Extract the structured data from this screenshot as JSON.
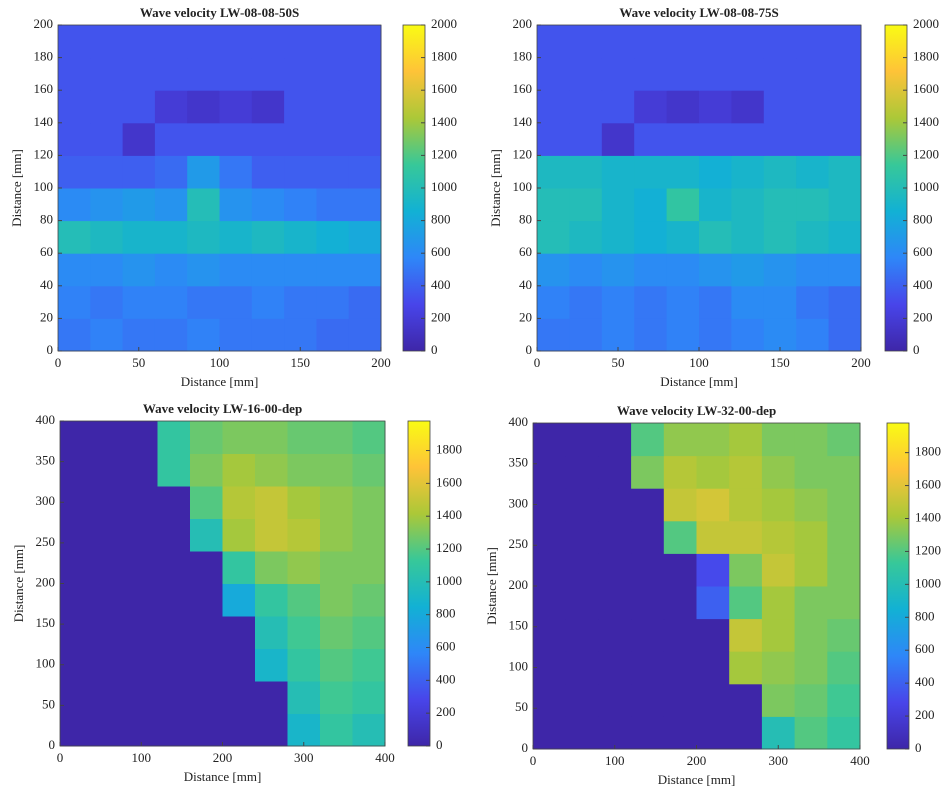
{
  "chart_data": [
    {
      "type": "heatmap",
      "title": "Wave velocity LW-08-08-50S",
      "x_label": "Distance [mm]",
      "y_label": "Distance [mm]",
      "x": [
        10,
        30,
        50,
        70,
        90,
        110,
        130,
        150,
        170,
        190
      ],
      "y": [
        10,
        30,
        50,
        70,
        90,
        110,
        130,
        150,
        170,
        190
      ],
      "xlim": [
        0,
        200
      ],
      "ylim": [
        0,
        200
      ],
      "xticks": [
        0,
        50,
        100,
        150,
        200
      ],
      "yticks": [
        0,
        20,
        40,
        60,
        80,
        100,
        120,
        140,
        160,
        180,
        200
      ],
      "clim": [
        0,
        2000
      ],
      "cticks": [
        0,
        200,
        400,
        600,
        800,
        1000,
        1200,
        1400,
        1600,
        1800,
        2000
      ],
      "colorscale": [
        "#3e26a8",
        "#4845ea",
        "#2e87f8",
        "#12b1d4",
        "#37c899",
        "#abc838",
        "#fec338",
        "#f9fb14"
      ],
      "z": [
        [
          500,
          550,
          500,
          500,
          550,
          500,
          500,
          500,
          450,
          450
        ],
        [
          550,
          500,
          550,
          550,
          500,
          500,
          550,
          500,
          500,
          450
        ],
        [
          600,
          600,
          650,
          600,
          650,
          600,
          600,
          600,
          600,
          600
        ],
        [
          1000,
          950,
          900,
          900,
          950,
          900,
          950,
          900,
          850,
          800
        ],
        [
          600,
          650,
          700,
          650,
          1000,
          650,
          600,
          550,
          500,
          500
        ],
        [
          400,
          400,
          400,
          450,
          700,
          500,
          400,
          400,
          400,
          400
        ],
        [
          350,
          350,
          150,
          350,
          350,
          350,
          350,
          350,
          350,
          350
        ],
        [
          350,
          350,
          350,
          200,
          150,
          200,
          150,
          350,
          350,
          350
        ],
        [
          350,
          350,
          350,
          350,
          350,
          350,
          350,
          350,
          350,
          350
        ],
        [
          350,
          350,
          350,
          350,
          350,
          350,
          350,
          350,
          350,
          350
        ]
      ]
    },
    {
      "type": "heatmap",
      "title": "Wave velocity LW-08-08-75S",
      "x_label": "Distance [mm]",
      "y_label": "Distance [mm]",
      "x": [
        10,
        30,
        50,
        70,
        90,
        110,
        130,
        150,
        170,
        190
      ],
      "y": [
        10,
        30,
        50,
        70,
        90,
        110,
        130,
        150,
        170,
        190
      ],
      "xlim": [
        0,
        200
      ],
      "ylim": [
        0,
        200
      ],
      "xticks": [
        0,
        50,
        100,
        150,
        200
      ],
      "yticks": [
        0,
        20,
        40,
        60,
        80,
        100,
        120,
        140,
        160,
        180,
        200
      ],
      "clim": [
        0,
        2000
      ],
      "cticks": [
        0,
        200,
        400,
        600,
        800,
        1000,
        1200,
        1400,
        1600,
        1800,
        2000
      ],
      "colorscale": [
        "#3e26a8",
        "#4845ea",
        "#2e87f8",
        "#12b1d4",
        "#37c899",
        "#abc838",
        "#fec338",
        "#f9fb14"
      ],
      "z": [
        [
          500,
          500,
          550,
          500,
          550,
          500,
          550,
          600,
          550,
          450
        ],
        [
          550,
          500,
          550,
          500,
          550,
          500,
          600,
          600,
          500,
          450
        ],
        [
          650,
          600,
          650,
          600,
          600,
          650,
          700,
          650,
          600,
          600
        ],
        [
          1000,
          950,
          900,
          850,
          900,
          1000,
          950,
          1000,
          950,
          900
        ],
        [
          1000,
          1000,
          900,
          850,
          1100,
          900,
          950,
          1000,
          1000,
          950
        ],
        [
          950,
          950,
          900,
          900,
          900,
          850,
          900,
          950,
          900,
          950
        ],
        [
          350,
          350,
          150,
          350,
          350,
          350,
          350,
          350,
          350,
          350
        ],
        [
          350,
          350,
          350,
          200,
          150,
          200,
          150,
          350,
          350,
          350
        ],
        [
          350,
          350,
          350,
          350,
          350,
          350,
          350,
          350,
          350,
          350
        ],
        [
          350,
          350,
          350,
          350,
          350,
          350,
          350,
          350,
          350,
          350
        ]
      ]
    },
    {
      "type": "heatmap",
      "title": "Wave velocity LW-16-00-dep",
      "x_label": "Distance [mm]",
      "y_label": "Distance [mm]",
      "x": [
        20,
        60,
        100,
        140,
        180,
        220,
        260,
        300,
        340,
        380
      ],
      "y": [
        20,
        60,
        100,
        140,
        180,
        220,
        260,
        300,
        340,
        380
      ],
      "xlim": [
        0,
        400
      ],
      "ylim": [
        0,
        400
      ],
      "xticks": [
        0,
        100,
        200,
        300,
        400
      ],
      "yticks": [
        0,
        50,
        100,
        150,
        200,
        250,
        300,
        350,
        400
      ],
      "clim": [
        0,
        1980
      ],
      "cticks": [
        0,
        200,
        400,
        600,
        800,
        1000,
        1200,
        1400,
        1600,
        1800
      ],
      "colorscale": [
        "#3e26a8",
        "#4845ea",
        "#2e87f8",
        "#12b1d4",
        "#37c899",
        "#abc838",
        "#fec338",
        "#f9fb14"
      ],
      "z": [
        [
          0,
          0,
          0,
          0,
          0,
          0,
          0,
          900,
          1100,
          1000
        ],
        [
          0,
          0,
          0,
          0,
          0,
          0,
          0,
          1000,
          1150,
          1100
        ],
        [
          0,
          0,
          0,
          0,
          0,
          0,
          900,
          1100,
          1200,
          1150
        ],
        [
          0,
          0,
          0,
          0,
          0,
          0,
          1000,
          1150,
          1250,
          1200
        ],
        [
          0,
          0,
          0,
          0,
          0,
          800,
          1100,
          1200,
          1300,
          1250
        ],
        [
          0,
          0,
          0,
          0,
          0,
          1100,
          1300,
          1350,
          1300,
          1300
        ],
        [
          0,
          0,
          0,
          0,
          1000,
          1400,
          1500,
          1450,
          1350,
          1300
        ],
        [
          0,
          0,
          0,
          0,
          1200,
          1450,
          1500,
          1400,
          1350,
          1300
        ],
        [
          0,
          0,
          0,
          1100,
          1300,
          1400,
          1350,
          1300,
          1300,
          1250
        ],
        [
          0,
          0,
          0,
          1100,
          1250,
          1300,
          1300,
          1250,
          1250,
          1200
        ]
      ]
    },
    {
      "type": "heatmap",
      "title": "Wave velocity LW-32-00-dep",
      "x_label": "Distance [mm]",
      "y_label": "Distance [mm]",
      "x": [
        20,
        60,
        100,
        140,
        180,
        220,
        260,
        300,
        340,
        380
      ],
      "y": [
        20,
        60,
        100,
        140,
        180,
        220,
        260,
        300,
        340,
        380
      ],
      "xlim": [
        0,
        400
      ],
      "ylim": [
        0,
        400
      ],
      "xticks": [
        0,
        100,
        200,
        300,
        400
      ],
      "yticks": [
        0,
        50,
        100,
        150,
        200,
        250,
        300,
        350,
        400
      ],
      "clim": [
        0,
        1980
      ],
      "cticks": [
        0,
        200,
        400,
        600,
        800,
        1000,
        1200,
        1400,
        1600,
        1800
      ],
      "colorscale": [
        "#3e26a8",
        "#4845ea",
        "#2e87f8",
        "#12b1d4",
        "#37c899",
        "#abc838",
        "#fec338",
        "#f9fb14"
      ],
      "z": [
        [
          0,
          0,
          0,
          0,
          0,
          0,
          0,
          1000,
          1200,
          1100
        ],
        [
          0,
          0,
          0,
          0,
          0,
          0,
          0,
          1300,
          1250,
          1150
        ],
        [
          0,
          0,
          0,
          0,
          0,
          0,
          1400,
          1350,
          1300,
          1200
        ],
        [
          0,
          0,
          0,
          0,
          0,
          0,
          1500,
          1400,
          1300,
          1250
        ],
        [
          0,
          0,
          0,
          0,
          0,
          400,
          1200,
          1400,
          1300,
          1300
        ],
        [
          0,
          0,
          0,
          0,
          0,
          300,
          1300,
          1500,
          1400,
          1300
        ],
        [
          0,
          0,
          0,
          0,
          1200,
          1500,
          1500,
          1450,
          1400,
          1300
        ],
        [
          0,
          0,
          0,
          0,
          1500,
          1550,
          1450,
          1400,
          1350,
          1300
        ],
        [
          0,
          0,
          0,
          1300,
          1450,
          1400,
          1450,
          1350,
          1300,
          1300
        ],
        [
          0,
          0,
          0,
          1200,
          1350,
          1350,
          1400,
          1300,
          1300,
          1250
        ]
      ]
    }
  ]
}
